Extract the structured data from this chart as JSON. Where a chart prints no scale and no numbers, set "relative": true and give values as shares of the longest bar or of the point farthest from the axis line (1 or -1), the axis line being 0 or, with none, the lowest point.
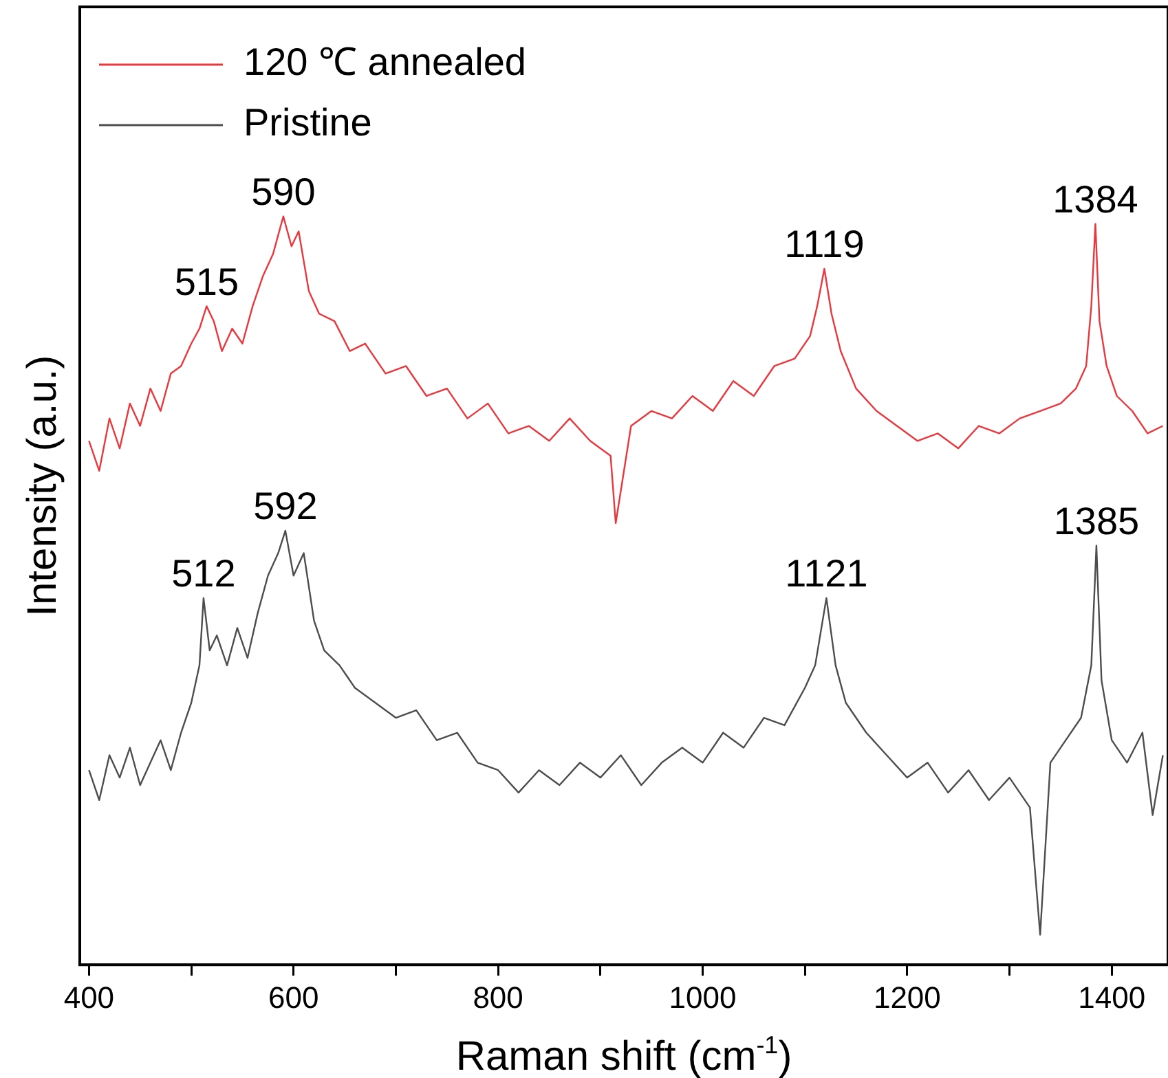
{
  "chart_data": {
    "type": "line",
    "xlabel": "Raman shift (cm$^{-1}$)",
    "ylabel": "Intensity (a.u.)",
    "relative": true,
    "legend": "top left",
    "grid": false,
    "marker": "none",
    "xlim": [
      391,
      1455
    ],
    "xticks": [
      400,
      {
        "value": 500,
        "label": null
      },
      600,
      {
        "value": 700,
        "label": null
      },
      800,
      {
        "value": 900,
        "label": null
      },
      1000,
      {
        "value": 1100,
        "label": null
      },
      1200,
      {
        "value": 1300,
        "label": null
      },
      1400
    ],
    "series": [
      {
        "name": "120 ℃ annealed",
        "color": "#e8383d",
        "x": [
          400,
          410,
          420,
          430,
          440,
          450,
          460,
          470,
          480,
          490,
          500,
          508,
          515,
          522,
          530,
          540,
          550,
          560,
          570,
          580,
          590,
          598,
          605,
          615,
          625,
          640,
          655,
          670,
          690,
          710,
          730,
          750,
          770,
          790,
          810,
          830,
          850,
          870,
          890,
          910,
          915,
          930,
          950,
          970,
          990,
          1010,
          1030,
          1050,
          1070,
          1090,
          1105,
          1112,
          1119,
          1126,
          1135,
          1150,
          1170,
          1190,
          1210,
          1230,
          1250,
          1270,
          1290,
          1310,
          1330,
          1350,
          1365,
          1375,
          1380,
          1384,
          1388,
          1395,
          1405,
          1420,
          1435,
          1450
        ],
        "values": [
          0.7,
          0.66,
          0.73,
          0.69,
          0.75,
          0.72,
          0.77,
          0.74,
          0.79,
          0.8,
          0.83,
          0.85,
          0.88,
          0.86,
          0.82,
          0.85,
          0.83,
          0.88,
          0.92,
          0.95,
          1.0,
          0.96,
          0.98,
          0.9,
          0.87,
          0.86,
          0.82,
          0.83,
          0.79,
          0.8,
          0.76,
          0.77,
          0.73,
          0.75,
          0.71,
          0.72,
          0.7,
          0.73,
          0.7,
          0.68,
          0.59,
          0.72,
          0.74,
          0.73,
          0.76,
          0.74,
          0.78,
          0.76,
          0.8,
          0.81,
          0.84,
          0.88,
          0.93,
          0.87,
          0.82,
          0.77,
          0.74,
          0.72,
          0.7,
          0.71,
          0.69,
          0.72,
          0.71,
          0.73,
          0.74,
          0.75,
          0.77,
          0.8,
          0.88,
          0.99,
          0.86,
          0.8,
          0.76,
          0.74,
          0.71,
          0.72
        ]
      },
      {
        "name": "Pristine",
        "color": "#4d4d4d",
        "x": [
          400,
          410,
          420,
          430,
          440,
          450,
          460,
          470,
          480,
          490,
          500,
          508,
          512,
          518,
          525,
          535,
          545,
          555,
          565,
          575,
          585,
          592,
          600,
          610,
          620,
          630,
          645,
          660,
          680,
          700,
          720,
          740,
          760,
          780,
          800,
          820,
          840,
          860,
          880,
          900,
          920,
          940,
          960,
          980,
          1000,
          1020,
          1040,
          1060,
          1080,
          1100,
          1110,
          1121,
          1130,
          1140,
          1160,
          1180,
          1200,
          1220,
          1240,
          1260,
          1280,
          1300,
          1320,
          1330,
          1340,
          1355,
          1370,
          1380,
          1385,
          1390,
          1400,
          1415,
          1430,
          1440,
          1450
        ],
        "values": [
          0.26,
          0.22,
          0.28,
          0.25,
          0.29,
          0.24,
          0.27,
          0.3,
          0.26,
          0.31,
          0.35,
          0.4,
          0.49,
          0.42,
          0.44,
          0.4,
          0.45,
          0.41,
          0.47,
          0.52,
          0.55,
          0.58,
          0.52,
          0.55,
          0.46,
          0.42,
          0.4,
          0.37,
          0.35,
          0.33,
          0.34,
          0.3,
          0.31,
          0.27,
          0.26,
          0.23,
          0.26,
          0.24,
          0.27,
          0.25,
          0.28,
          0.24,
          0.27,
          0.29,
          0.27,
          0.31,
          0.29,
          0.33,
          0.32,
          0.37,
          0.4,
          0.49,
          0.4,
          0.35,
          0.31,
          0.28,
          0.25,
          0.27,
          0.23,
          0.26,
          0.22,
          0.25,
          0.21,
          0.04,
          0.27,
          0.3,
          0.33,
          0.4,
          0.56,
          0.38,
          0.3,
          0.27,
          0.31,
          0.2,
          0.28
        ]
      }
    ],
    "annotations": [
      {
        "text": "515",
        "x": 515,
        "y": 0.88
      },
      {
        "text": "590",
        "x": 590,
        "y": 1.0
      },
      {
        "text": "1119",
        "x": 1119,
        "y": 0.93
      },
      {
        "text": "1384",
        "x": 1384,
        "y": 0.99
      },
      {
        "text": "512",
        "x": 512,
        "y": 0.49
      },
      {
        "text": "592",
        "x": 592,
        "y": 0.58
      },
      {
        "text": "1121",
        "x": 1121,
        "y": 0.49
      },
      {
        "text": "1385",
        "x": 1385,
        "y": 0.56
      }
    ]
  }
}
